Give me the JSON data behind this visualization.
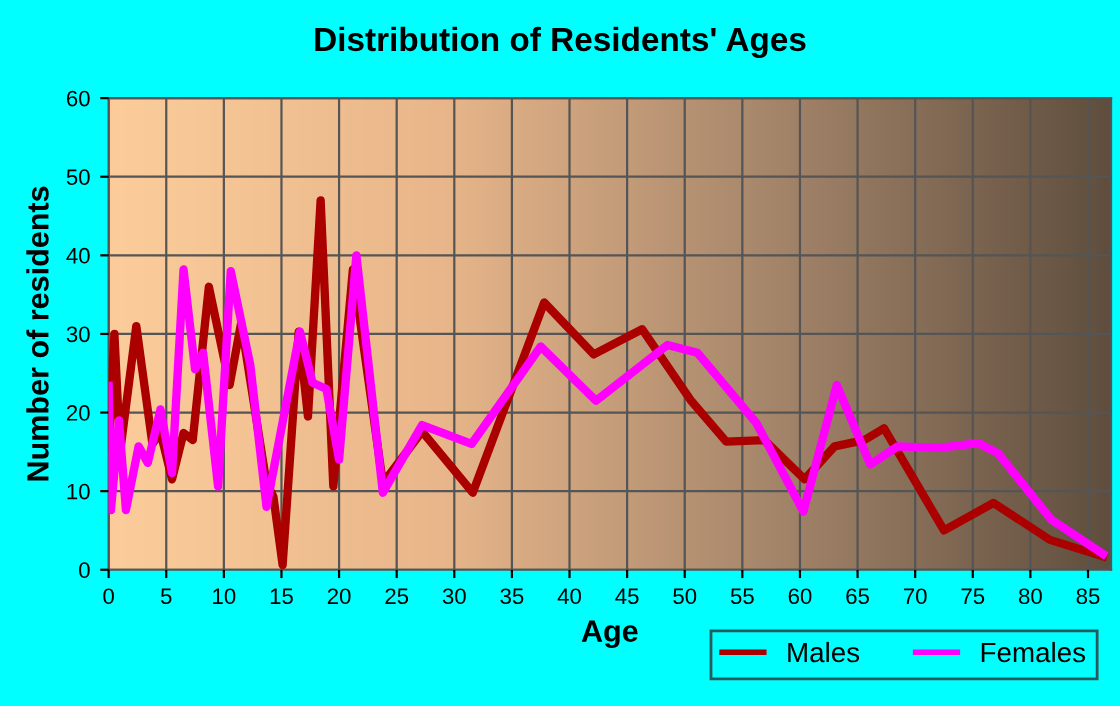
{
  "chart_data": {
    "type": "line",
    "title": "Distribution of Residents' Ages",
    "xlabel": "Age",
    "ylabel": "Number of residents",
    "xlim": [
      0,
      87
    ],
    "xticks": [
      0,
      5,
      10,
      15,
      20,
      25,
      30,
      35,
      40,
      45,
      50,
      55,
      60,
      65,
      70,
      75,
      80,
      85
    ],
    "ylim": [
      0,
      60
    ],
    "yticks": [
      0,
      10,
      20,
      30,
      40,
      50,
      60
    ],
    "grid": true,
    "legend": "bottom right",
    "line_style": "solid",
    "marker": "none",
    "series": [
      {
        "name": "Males",
        "color": "#aa0000",
        "x": [
          0,
          0.5,
          1,
          2.4,
          3.8,
          4.5,
          5.5,
          6.5,
          7.3,
          8.7,
          10.5,
          11.5,
          13.7,
          14.3,
          15.1,
          16.5,
          17.3,
          18.4,
          19.5,
          21.2,
          23.8,
          27.2,
          31.6,
          37.8,
          42.1,
          46.3,
          50.5,
          53.6,
          56.9,
          60.4,
          63.0,
          65.6,
          67.3,
          72.5,
          76.8,
          81.7,
          86.3
        ],
        "values": [
          15.7,
          30,
          15,
          31,
          16,
          17.5,
          11.5,
          17.4,
          16.5,
          36,
          23.5,
          31.4,
          11,
          9.3,
          0.6,
          30.3,
          19.5,
          47,
          10.6,
          38.2,
          11,
          17.6,
          9.8,
          34,
          27.4,
          30.6,
          21.6,
          16.3,
          16.5,
          11.5,
          15.7,
          16.5,
          18,
          5,
          8.5,
          3.8,
          1.7
        ]
      },
      {
        "name": "Females",
        "color": "#ff00ff",
        "x": [
          0,
          0.2,
          0.9,
          1.5,
          2.6,
          3.4,
          4.5,
          5.5,
          6.5,
          7.5,
          8.2,
          9.5,
          10.6,
          12.3,
          13.7,
          16.6,
          17.7,
          18.9,
          20,
          21.5,
          23.8,
          27.2,
          31.5,
          37.5,
          42.3,
          48.5,
          51.1,
          56.2,
          60.3,
          63.2,
          66.1,
          68.5,
          72,
          75.5,
          77.2,
          81.8,
          86.3
        ],
        "values": [
          23.4,
          7.6,
          19,
          7.6,
          15.7,
          13.6,
          20.4,
          12.3,
          38.2,
          25.5,
          27.6,
          10.6,
          38,
          26,
          8,
          30.3,
          23.8,
          23,
          14,
          40,
          9.8,
          18.4,
          16,
          28.4,
          21.5,
          28.6,
          27.6,
          18.7,
          7.4,
          23.5,
          13.4,
          15.7,
          15.5,
          16.1,
          14.8,
          6.4,
          2
        ]
      }
    ]
  }
}
